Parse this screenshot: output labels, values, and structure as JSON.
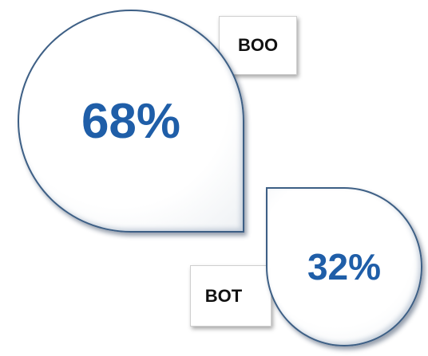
{
  "items": [
    {
      "label": "BOO",
      "value": "68%"
    },
    {
      "label": "BOT",
      "value": "32%"
    }
  ]
}
